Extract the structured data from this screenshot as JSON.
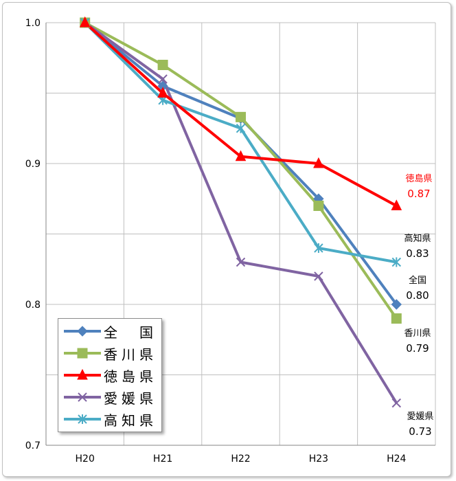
{
  "chart_data": {
    "type": "line",
    "categories": [
      "H20",
      "H21",
      "H22",
      "H23",
      "H24"
    ],
    "ylim": [
      0.7,
      1.0
    ],
    "yticks": [
      "0.7",
      "0.8",
      "0.9",
      "1.0"
    ],
    "grid": true,
    "legend_position": "bottom-left",
    "series": [
      {
        "name": "全　国",
        "color": "#4f81bd",
        "marker": "diamond",
        "values": [
          1.0,
          0.955,
          0.932,
          0.875,
          0.8
        ]
      },
      {
        "name": "香川県",
        "color": "#9bbb59",
        "marker": "square",
        "values": [
          1.0,
          0.97,
          0.933,
          0.87,
          0.79
        ]
      },
      {
        "name": "徳島県",
        "color": "#ff0000",
        "marker": "triangle",
        "values": [
          1.0,
          0.95,
          0.905,
          0.9,
          0.87
        ]
      },
      {
        "name": "愛媛県",
        "color": "#8064a2",
        "marker": "x",
        "values": [
          1.0,
          0.96,
          0.83,
          0.82,
          0.73
        ]
      },
      {
        "name": "高知県",
        "color": "#4bacc6",
        "marker": "star",
        "values": [
          1.0,
          0.945,
          0.925,
          0.84,
          0.83
        ]
      }
    ],
    "annotations": [
      {
        "label": "徳島県",
        "value": "0.87",
        "color": "#ff0000"
      },
      {
        "label": "高知県",
        "value": "0.83",
        "color": "#000000"
      },
      {
        "label": "全国",
        "value": "0.80",
        "color": "#000000"
      },
      {
        "label": "香川県",
        "value": "0.79",
        "color": "#000000"
      },
      {
        "label": "愛媛県",
        "value": "0.73",
        "color": "#000000"
      }
    ]
  }
}
